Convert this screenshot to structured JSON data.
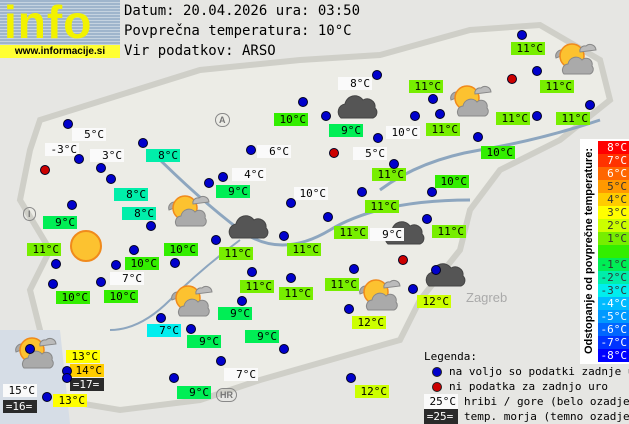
{
  "logo": {
    "word": "info",
    "url": "www.informacije.si"
  },
  "header": {
    "date_line": "Datum: 20.04.2026 ura: 03:50",
    "avg_line": "Povprečna temperatura: 10°C",
    "source_line": "Vir podatkov: ARSO"
  },
  "map_labels": {
    "zagreb": "Zagreb",
    "croatia": "HR",
    "austria": "A",
    "italy": "I"
  },
  "colors": {
    "station_ok": "#0000cc",
    "station_missing": "#cc0000",
    "mountain_bg": "#fafafa",
    "sea_bg": "#2a2a2a"
  },
  "stations": [
    {
      "temp": "5°C",
      "kind": "white"
    },
    {
      "temp": "-3°C",
      "kind": "white"
    },
    {
      "temp": "3°C",
      "kind": "white"
    },
    {
      "temp": "8°C",
      "dev": -2
    },
    {
      "temp": "8°C",
      "dev": -2
    },
    {
      "temp": "8°C",
      "dev": -2
    },
    {
      "temp": "9°C",
      "dev": -1
    },
    {
      "temp": "11°C",
      "dev": 1
    },
    {
      "temp": "10°C",
      "dev": 0
    },
    {
      "temp": "10°C",
      "dev": 0
    },
    {
      "temp": "7°C",
      "kind": "white"
    },
    {
      "temp": "10°C",
      "dev": 0
    },
    {
      "temp": "10°C",
      "dev": 0
    },
    {
      "temp": "11°C",
      "dev": 1
    },
    {
      "temp": "6°C",
      "kind": "white"
    },
    {
      "temp": "4°C",
      "kind": "white"
    },
    {
      "temp": "9°C",
      "dev": -1
    },
    {
      "temp": "10°C",
      "dev": 0
    },
    {
      "temp": "10°C",
      "kind": "white"
    },
    {
      "temp": "11°C",
      "dev": 1
    },
    {
      "temp": "11°C",
      "dev": 1
    },
    {
      "temp": "11°C",
      "dev": 1
    },
    {
      "temp": "9°C",
      "dev": -1
    },
    {
      "temp": "7°C",
      "dev": -3
    },
    {
      "temp": "9°C",
      "dev": -1
    },
    {
      "temp": "9°C",
      "dev": -1
    },
    {
      "temp": "13°C",
      "dev": 3
    },
    {
      "temp": "14°C",
      "dev": 4
    },
    {
      "temp": "=17=",
      "kind": "sea"
    },
    {
      "temp": "15°C",
      "kind": "white"
    },
    {
      "temp": "=16=",
      "kind": "sea"
    },
    {
      "temp": "13°C",
      "dev": 3
    },
    {
      "temp": "9°C",
      "dev": -1
    },
    {
      "temp": "7°C",
      "kind": "white"
    },
    {
      "temp": "12°C",
      "dev": 2
    },
    {
      "temp": "12°C",
      "dev": 2
    },
    {
      "temp": "11°C",
      "dev": 1
    },
    {
      "temp": "11°C",
      "dev": 1
    },
    {
      "temp": "8°C",
      "kind": "white"
    },
    {
      "temp": "11°C",
      "dev": 1
    },
    {
      "temp": "11°C",
      "dev": 1
    },
    {
      "temp": "9°C",
      "dev": -1
    },
    {
      "temp": "10°C",
      "kind": "white"
    },
    {
      "temp": "11°C",
      "dev": 1
    },
    {
      "temp": "11°C",
      "dev": 1
    },
    {
      "temp": "11°C",
      "dev": 1
    },
    {
      "temp": "5°C",
      "kind": "white"
    },
    {
      "temp": "11°C",
      "dev": 1
    },
    {
      "temp": "10°C",
      "dev": 0
    },
    {
      "temp": "10°C",
      "dev": 0
    },
    {
      "temp": "11°C",
      "dev": 1
    },
    {
      "temp": "11°C",
      "dev": 1
    },
    {
      "temp": "9°C",
      "kind": "white"
    },
    {
      "temp": "11°C",
      "dev": 1
    },
    {
      "temp": "12°C",
      "dev": 2
    }
  ],
  "scale": {
    "title": "Odstopanje od povprečne temperature:",
    "steps": [
      {
        "label": "8°C",
        "color": "#ff0000"
      },
      {
        "label": "7°C",
        "color": "#ff3300"
      },
      {
        "label": "6°C",
        "color": "#ff6600"
      },
      {
        "label": "5°C",
        "color": "#ff9900"
      },
      {
        "label": "4°C",
        "color": "#ffcc00"
      },
      {
        "label": "3°C",
        "color": "#ffff00"
      },
      {
        "label": "2°C",
        "color": "#ccff00"
      },
      {
        "label": "1°C",
        "color": "#77ee00"
      },
      {
        "label": "",
        "color": "#33ee00"
      },
      {
        "label": "-1°C",
        "color": "#00ee55"
      },
      {
        "label": "-2°C",
        "color": "#00eeaa"
      },
      {
        "label": "-3°C",
        "color": "#00eeee"
      },
      {
        "label": "-4°C",
        "color": "#00bbff"
      },
      {
        "label": "-5°C",
        "color": "#0099ff"
      },
      {
        "label": "-6°C",
        "color": "#0066ff"
      },
      {
        "label": "-7°C",
        "color": "#0033ff"
      },
      {
        "label": "-8°C",
        "color": "#0000ff"
      }
    ]
  },
  "legend": {
    "title": "Legenda:",
    "ok": "na voljo so podatki zadnje ure",
    "missing": "ni podatka za zadnjo uro",
    "mountain_sample": "25°C",
    "mountain_text": "hribi / gore (belo ozadje)",
    "sea_sample": "=25=",
    "sea_text": "temp. morja (temno ozadje)"
  }
}
